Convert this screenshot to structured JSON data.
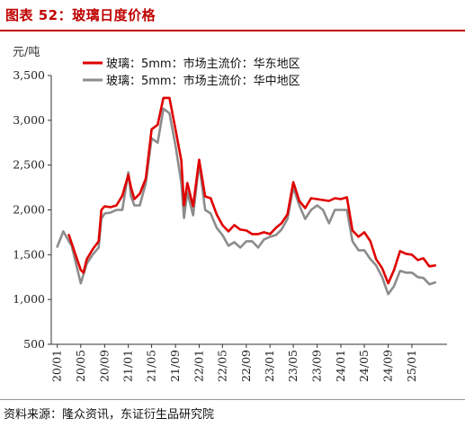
{
  "header": {
    "title": "图表 52：玻璃日度价格",
    "unit": "元/吨"
  },
  "footer": {
    "source": "资料来源：隆众资讯，东证衍生品研究院"
  },
  "colors": {
    "accent": "#c00000",
    "series_east": "#e00000",
    "series_central": "#8c8c8c"
  },
  "chart_data": {
    "type": "line",
    "ylim": [
      500,
      3500
    ],
    "yticks": [
      500,
      1000,
      1500,
      2000,
      2500,
      3000,
      3500
    ],
    "ytick_labels": [
      "500",
      "1,000",
      "1,500",
      "2,000",
      "2,500",
      "3,000",
      "3,500"
    ],
    "xrange": [
      "2019-12",
      "2025-07"
    ],
    "xticks": [
      "20/01",
      "20/05",
      "20/09",
      "21/01",
      "21/05",
      "21/09",
      "22/01",
      "22/05",
      "22/09",
      "23/01",
      "23/05",
      "23/09",
      "24/01",
      "24/05",
      "24/09",
      "25/01"
    ],
    "xtick_dates": [
      "2020-01",
      "2020-05",
      "2020-09",
      "2021-01",
      "2021-05",
      "2021-09",
      "2022-01",
      "2022-05",
      "2022-09",
      "2023-01",
      "2023-05",
      "2023-09",
      "2024-01",
      "2024-05",
      "2024-09",
      "2025-01"
    ],
    "grid": false,
    "legend_position": "top",
    "series": [
      {
        "name": "玻璃：5mm：市场主流价：华东地区",
        "color": "#e00000",
        "points": [
          [
            "2020-03-01",
            1720
          ],
          [
            "2020-04-01",
            1520
          ],
          [
            "2020-05-01",
            1330
          ],
          [
            "2020-05-15",
            1300
          ],
          [
            "2020-06-01",
            1450
          ],
          [
            "2020-07-01",
            1560
          ],
          [
            "2020-08-01",
            1650
          ],
          [
            "2020-08-15",
            2000
          ],
          [
            "2020-09-01",
            2040
          ],
          [
            "2020-10-01",
            2030
          ],
          [
            "2020-11-01",
            2050
          ],
          [
            "2020-12-01",
            2160
          ],
          [
            "2021-01-01",
            2390
          ],
          [
            "2021-01-15",
            2250
          ],
          [
            "2021-02-01",
            2120
          ],
          [
            "2021-03-01",
            2180
          ],
          [
            "2021-04-01",
            2350
          ],
          [
            "2021-05-01",
            2900
          ],
          [
            "2021-06-01",
            2950
          ],
          [
            "2021-07-01",
            3250
          ],
          [
            "2021-08-01",
            3250
          ],
          [
            "2021-09-01",
            2900
          ],
          [
            "2021-10-01",
            2550
          ],
          [
            "2021-10-15",
            2050
          ],
          [
            "2021-11-01",
            2300
          ],
          [
            "2021-12-01",
            2040
          ],
          [
            "2022-01-01",
            2560
          ],
          [
            "2022-02-01",
            2150
          ],
          [
            "2022-03-01",
            2130
          ],
          [
            "2022-04-01",
            1950
          ],
          [
            "2022-05-01",
            1830
          ],
          [
            "2022-06-01",
            1760
          ],
          [
            "2022-07-01",
            1830
          ],
          [
            "2022-08-01",
            1780
          ],
          [
            "2022-09-01",
            1770
          ],
          [
            "2022-10-01",
            1730
          ],
          [
            "2022-11-01",
            1730
          ],
          [
            "2022-12-01",
            1750
          ],
          [
            "2023-01-01",
            1730
          ],
          [
            "2023-02-01",
            1800
          ],
          [
            "2023-03-01",
            1850
          ],
          [
            "2023-04-01",
            1950
          ],
          [
            "2023-05-01",
            2310
          ],
          [
            "2023-06-01",
            2100
          ],
          [
            "2023-07-01",
            2020
          ],
          [
            "2023-08-01",
            2130
          ],
          [
            "2023-09-01",
            2120
          ],
          [
            "2023-10-01",
            2110
          ],
          [
            "2023-11-01",
            2100
          ],
          [
            "2023-12-01",
            2130
          ],
          [
            "2024-01-01",
            2120
          ],
          [
            "2024-02-01",
            2140
          ],
          [
            "2024-03-01",
            1770
          ],
          [
            "2024-04-01",
            1700
          ],
          [
            "2024-05-01",
            1750
          ],
          [
            "2024-06-01",
            1650
          ],
          [
            "2024-07-01",
            1450
          ],
          [
            "2024-08-01",
            1350
          ],
          [
            "2024-09-01",
            1180
          ],
          [
            "2024-10-01",
            1330
          ],
          [
            "2024-11-01",
            1540
          ],
          [
            "2024-12-01",
            1510
          ],
          [
            "2025-01-01",
            1500
          ],
          [
            "2025-02-01",
            1440
          ],
          [
            "2025-03-01",
            1460
          ],
          [
            "2025-04-01",
            1370
          ],
          [
            "2025-05-01",
            1380
          ]
        ]
      },
      {
        "name": "玻璃：5mm：市场主流价：华中地区",
        "color": "#8c8c8c",
        "points": [
          [
            "2020-01-01",
            1590
          ],
          [
            "2020-02-01",
            1760
          ],
          [
            "2020-03-01",
            1650
          ],
          [
            "2020-03-15",
            1600
          ],
          [
            "2020-04-01",
            1450
          ],
          [
            "2020-05-01",
            1180
          ],
          [
            "2020-06-01",
            1400
          ],
          [
            "2020-07-01",
            1500
          ],
          [
            "2020-08-01",
            1580
          ],
          [
            "2020-08-15",
            1900
          ],
          [
            "2020-09-01",
            1960
          ],
          [
            "2020-10-01",
            1970
          ],
          [
            "2020-11-01",
            2000
          ],
          [
            "2020-12-01",
            2000
          ],
          [
            "2021-01-01",
            2420
          ],
          [
            "2021-01-15",
            2150
          ],
          [
            "2021-02-01",
            2050
          ],
          [
            "2021-03-01",
            2050
          ],
          [
            "2021-04-01",
            2300
          ],
          [
            "2021-05-01",
            2800
          ],
          [
            "2021-06-01",
            2750
          ],
          [
            "2021-07-01",
            3130
          ],
          [
            "2021-08-01",
            3080
          ],
          [
            "2021-09-01",
            2720
          ],
          [
            "2021-10-01",
            2300
          ],
          [
            "2021-10-15",
            1910
          ],
          [
            "2021-11-01",
            2200
          ],
          [
            "2021-12-01",
            1940
          ],
          [
            "2022-01-01",
            2520
          ],
          [
            "2022-02-01",
            2000
          ],
          [
            "2022-03-01",
            1960
          ],
          [
            "2022-04-01",
            1800
          ],
          [
            "2022-05-01",
            1720
          ],
          [
            "2022-06-01",
            1600
          ],
          [
            "2022-07-01",
            1640
          ],
          [
            "2022-08-01",
            1580
          ],
          [
            "2022-09-01",
            1650
          ],
          [
            "2022-10-01",
            1650
          ],
          [
            "2022-11-01",
            1580
          ],
          [
            "2022-12-01",
            1670
          ],
          [
            "2023-01-01",
            1700
          ],
          [
            "2023-02-01",
            1720
          ],
          [
            "2023-03-01",
            1780
          ],
          [
            "2023-04-01",
            1900
          ],
          [
            "2023-05-01",
            2250
          ],
          [
            "2023-06-01",
            2050
          ],
          [
            "2023-07-01",
            1900
          ],
          [
            "2023-08-01",
            2000
          ],
          [
            "2023-09-01",
            2050
          ],
          [
            "2023-10-01",
            2000
          ],
          [
            "2023-11-01",
            1850
          ],
          [
            "2023-12-01",
            2000
          ],
          [
            "2024-01-01",
            2000
          ],
          [
            "2024-02-01",
            2000
          ],
          [
            "2024-03-01",
            1650
          ],
          [
            "2024-04-01",
            1550
          ],
          [
            "2024-05-01",
            1550
          ],
          [
            "2024-06-01",
            1450
          ],
          [
            "2024-07-01",
            1380
          ],
          [
            "2024-08-01",
            1250
          ],
          [
            "2024-09-01",
            1060
          ],
          [
            "2024-10-01",
            1150
          ],
          [
            "2024-11-01",
            1320
          ],
          [
            "2024-12-01",
            1300
          ],
          [
            "2025-01-01",
            1300
          ],
          [
            "2025-02-01",
            1250
          ],
          [
            "2025-03-01",
            1240
          ],
          [
            "2025-04-01",
            1170
          ],
          [
            "2025-05-01",
            1190
          ]
        ]
      }
    ]
  }
}
